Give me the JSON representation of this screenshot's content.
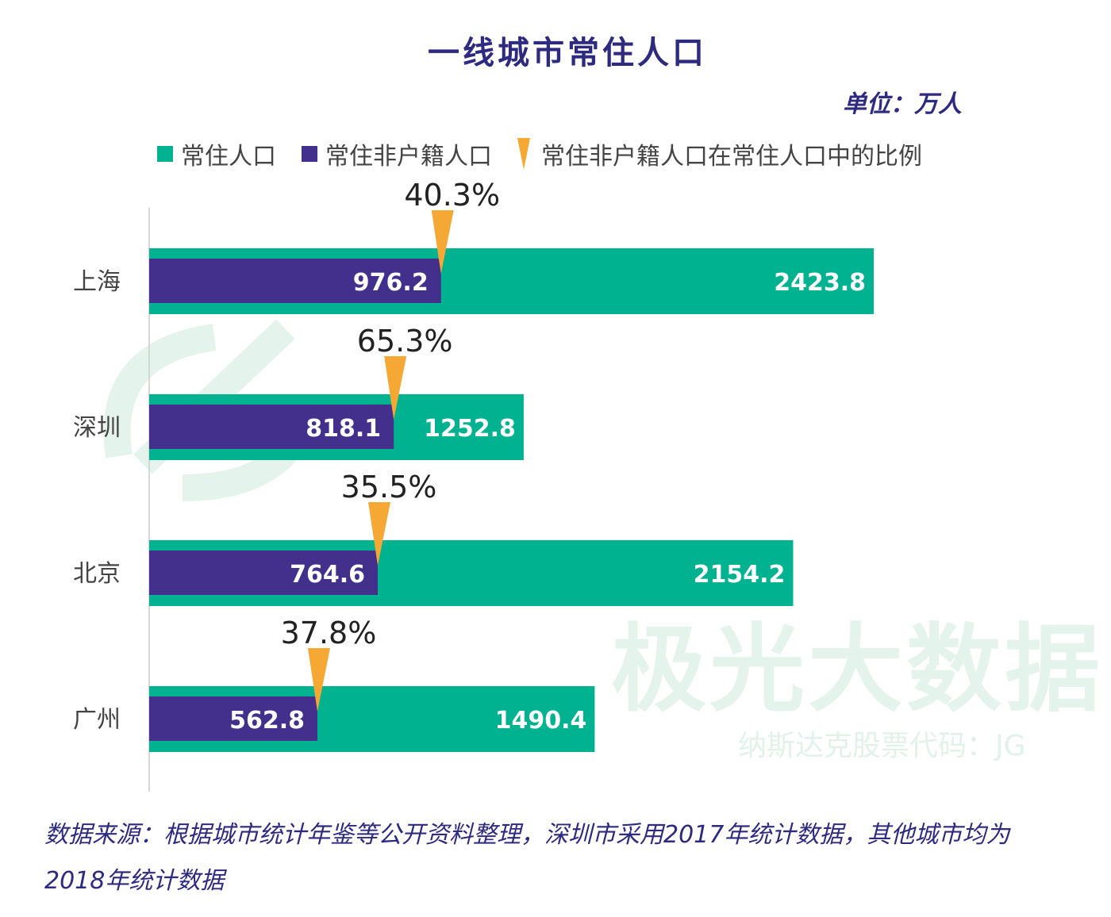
{
  "chart_data": {
    "type": "bar",
    "orientation": "horizontal",
    "title": "一线城市常住人口",
    "unit": "单位：万人",
    "categories": [
      "上海",
      "深圳",
      "北京",
      "广州"
    ],
    "series": [
      {
        "name": "常住人口",
        "values": [
          2423.8,
          1252.8,
          2154.2,
          1490.4
        ],
        "color": "#00b290"
      },
      {
        "name": "常住非户籍人口",
        "values": [
          976.2,
          818.1,
          764.6,
          562.8
        ],
        "color": "#42308c"
      }
    ],
    "ratio_series": {
      "name": "常住非户籍人口在常住人口中的比例",
      "labels": [
        "40.3%",
        "65.3%",
        "35.5%",
        "37.8%"
      ],
      "values": [
        40.3,
        65.3,
        35.5,
        37.8
      ],
      "color": "#f5a833"
    },
    "xlim": [
      0,
      2423.8
    ],
    "grid": false,
    "legend_position": "top"
  },
  "watermark": {
    "brand": "极光大数据",
    "sub": "纳斯达克股票代码：JG"
  },
  "source": "数据来源：根据城市统计年鉴等公开资料整理，深圳市采用2017年统计数据，其他城市均为2018年统计数据"
}
